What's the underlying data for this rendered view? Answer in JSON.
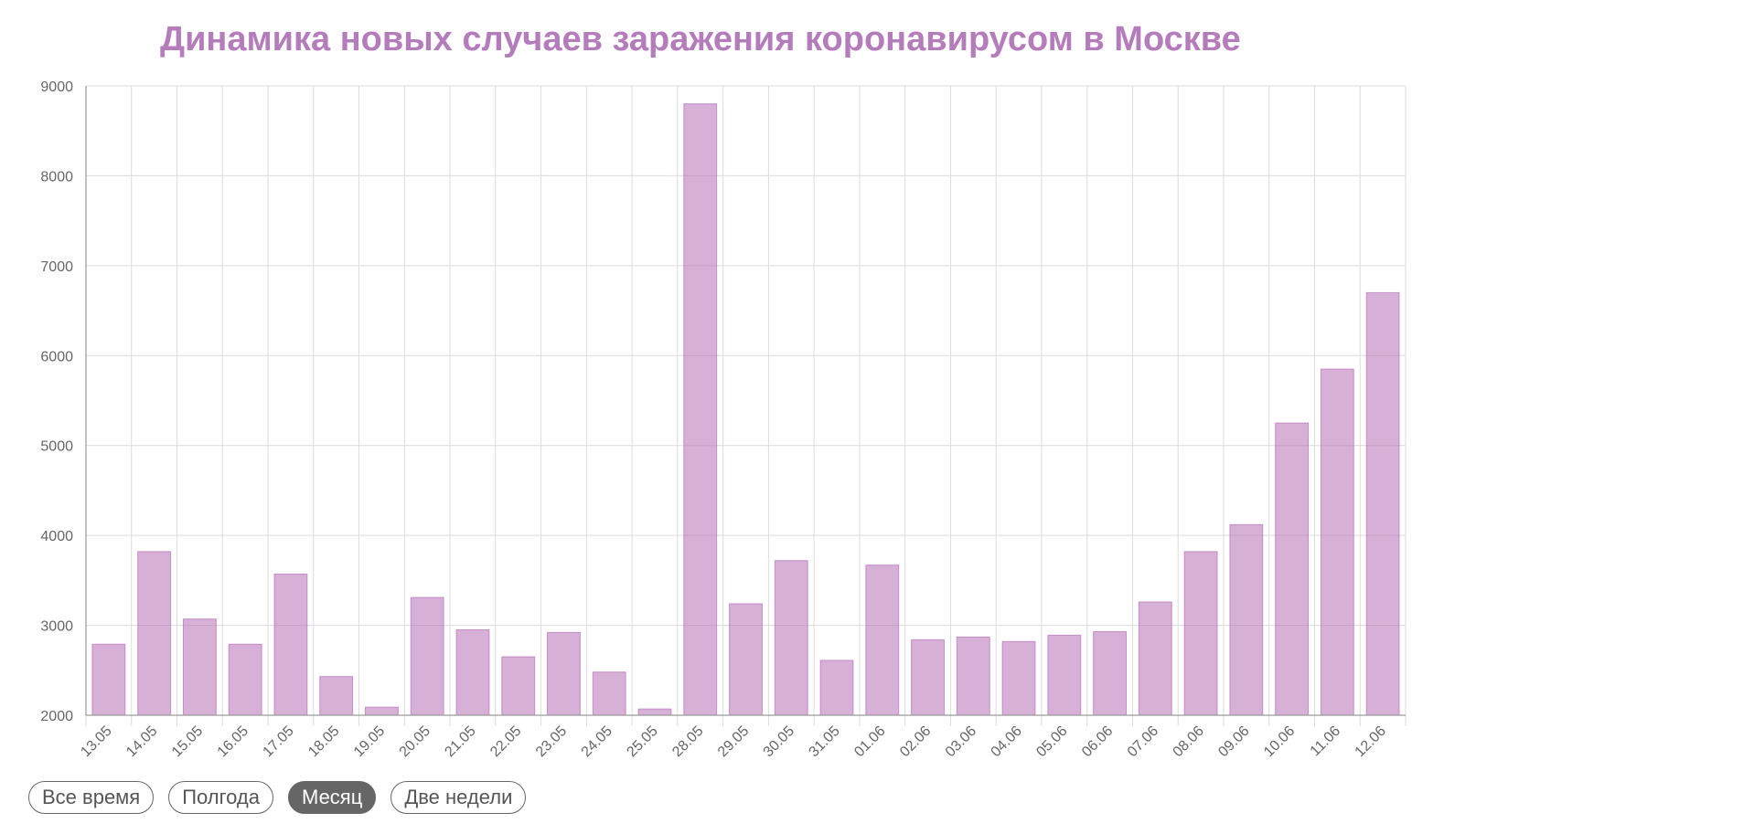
{
  "chart_data": {
    "type": "bar",
    "title": "Динамика новых случаев заражения коронавирусом в Москве",
    "xlabel": "",
    "ylabel": "",
    "ylim": [
      2000,
      9000
    ],
    "y_ticks": [
      2000,
      3000,
      4000,
      5000,
      6000,
      7000,
      8000,
      9000
    ],
    "grid": true,
    "legend": "none",
    "bar_color": "#b66fb8",
    "categories": [
      "13.05",
      "14.05",
      "15.05",
      "16.05",
      "17.05",
      "18.05",
      "19.05",
      "20.05",
      "21.05",
      "22.05",
      "23.05",
      "24.05",
      "25.05",
      "28.05",
      "29.05",
      "30.05",
      "31.05",
      "01.06",
      "02.06",
      "03.06",
      "04.06",
      "05.06",
      "06.06",
      "07.06",
      "08.06",
      "09.06",
      "10.06",
      "11.06",
      "12.06"
    ],
    "values": [
      2790,
      3820,
      3070,
      2790,
      3570,
      2430,
      2090,
      3310,
      2950,
      2650,
      2920,
      2480,
      2070,
      8800,
      3240,
      3720,
      2610,
      3670,
      2840,
      2870,
      2820,
      2890,
      2930,
      3260,
      3820,
      4120,
      5250,
      5850,
      6700
    ]
  },
  "range_buttons": [
    {
      "label": "Все время",
      "active": false
    },
    {
      "label": "Полгода",
      "active": false
    },
    {
      "label": "Месяц",
      "active": true
    },
    {
      "label": "Две недели",
      "active": false
    }
  ]
}
